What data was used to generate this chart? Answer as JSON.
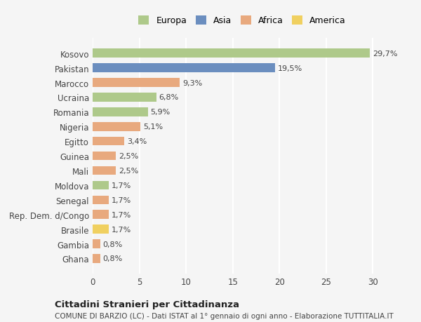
{
  "countries": [
    "Kosovo",
    "Pakistan",
    "Marocco",
    "Ucraina",
    "Romania",
    "Nigeria",
    "Egitto",
    "Guinea",
    "Mali",
    "Moldova",
    "Senegal",
    "Rep. Dem. d/Congo",
    "Brasile",
    "Gambia",
    "Ghana"
  ],
  "values": [
    29.7,
    19.5,
    9.3,
    6.8,
    5.9,
    5.1,
    3.4,
    2.5,
    2.5,
    1.7,
    1.7,
    1.7,
    1.7,
    0.8,
    0.8
  ],
  "labels": [
    "29,7%",
    "19,5%",
    "9,3%",
    "6,8%",
    "5,9%",
    "5,1%",
    "3,4%",
    "2,5%",
    "2,5%",
    "1,7%",
    "1,7%",
    "1,7%",
    "1,7%",
    "0,8%",
    "0,8%"
  ],
  "colors": [
    "#aec98a",
    "#6b8ebf",
    "#e8a97e",
    "#aec98a",
    "#aec98a",
    "#e8a97e",
    "#e8a97e",
    "#e8a97e",
    "#e8a97e",
    "#aec98a",
    "#e8a97e",
    "#e8a97e",
    "#f0d060",
    "#e8a97e",
    "#e8a97e"
  ],
  "legend_labels": [
    "Europa",
    "Asia",
    "Africa",
    "America"
  ],
  "legend_colors": [
    "#aec98a",
    "#6b8ebf",
    "#e8a97e",
    "#f0d060"
  ],
  "xlim": [
    0,
    32
  ],
  "xticks": [
    0,
    5,
    10,
    15,
    20,
    25,
    30
  ],
  "title": "Cittadini Stranieri per Cittadinanza",
  "subtitle": "COMUNE DI BARZIO (LC) - Dati ISTAT al 1° gennaio di ogni anno - Elaborazione TUTTITALIA.IT",
  "background_color": "#f5f5f5",
  "grid_color": "#ffffff",
  "bar_height": 0.6
}
